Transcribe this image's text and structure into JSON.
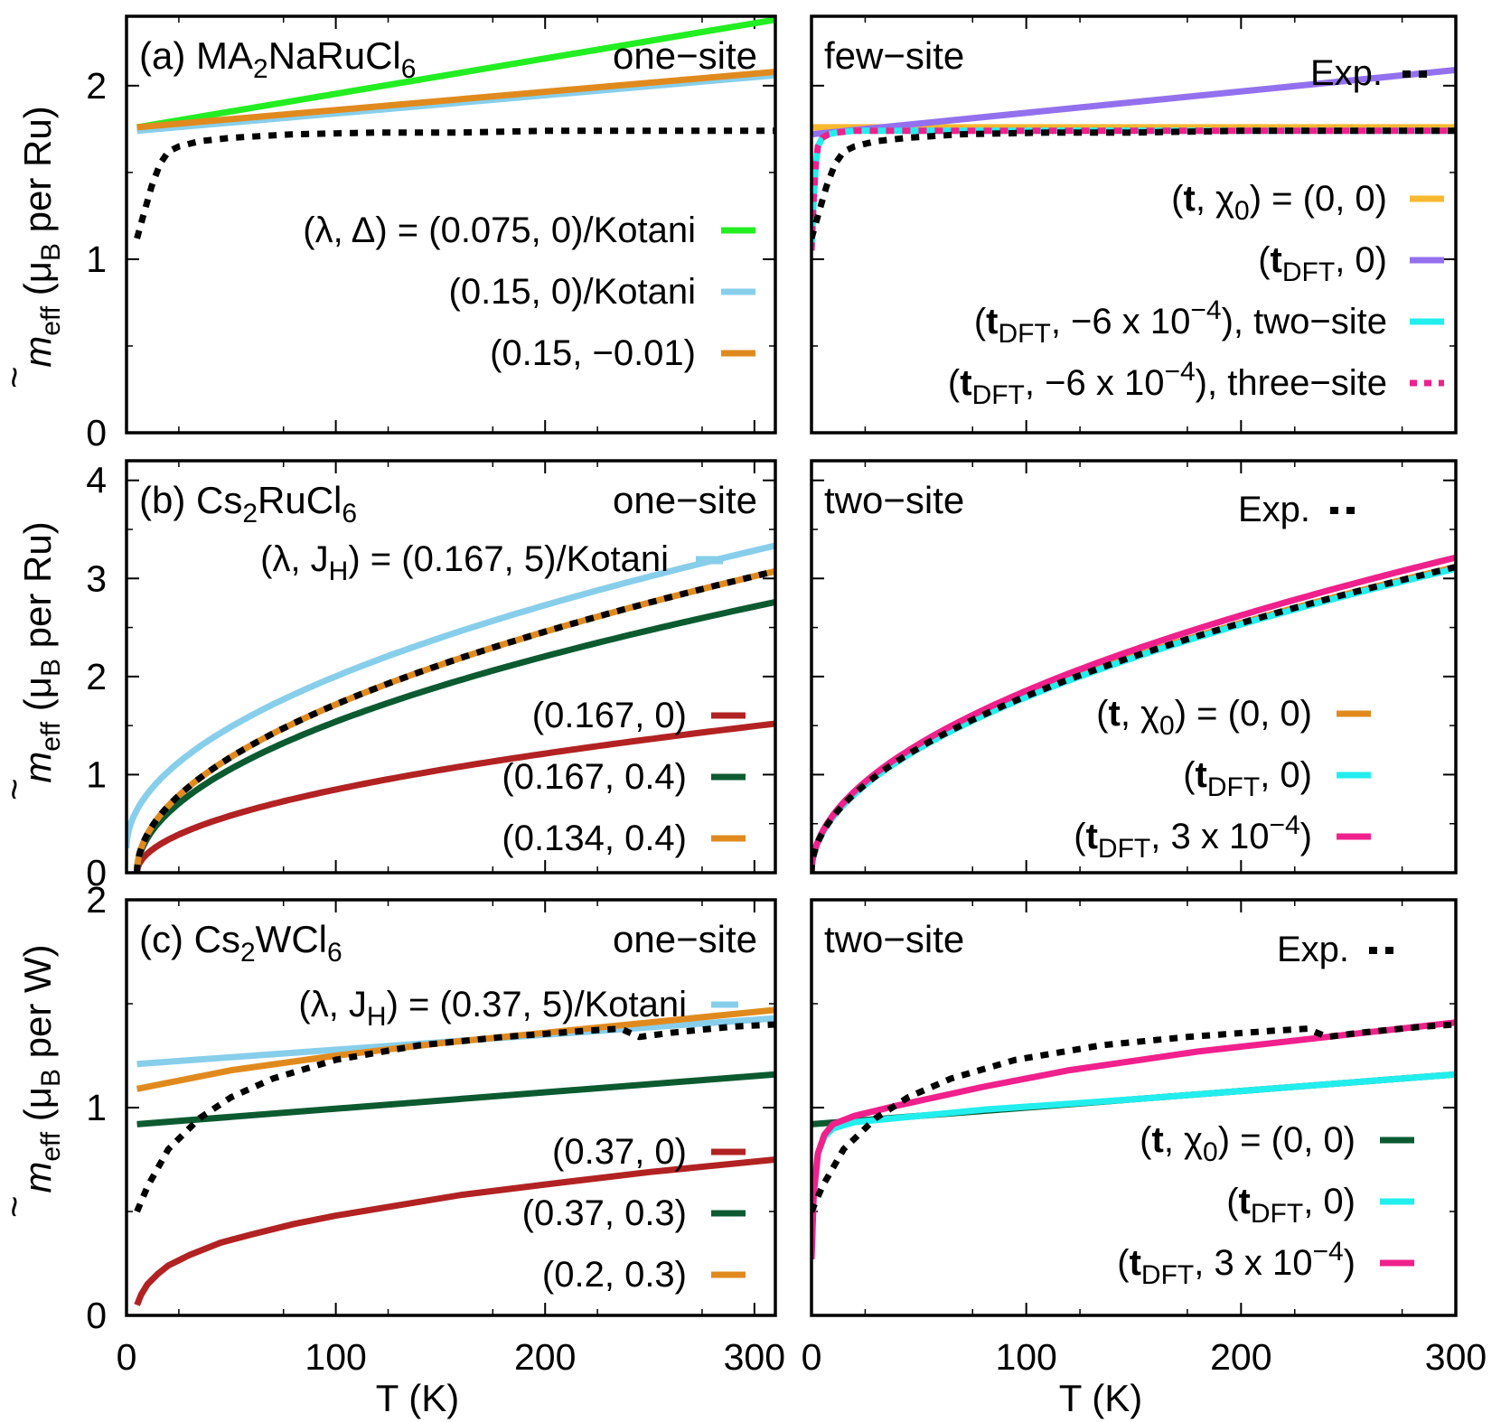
{
  "colors": {
    "exp": "#000000",
    "green": "#22ee22",
    "lightblue": "#87ceeb",
    "orange": "#e08a1e",
    "yellow": "#f8b830",
    "purple": "#9370ee",
    "cyan": "#22eeee",
    "magenta": "#f0208c",
    "darkred": "#b22222",
    "darkgreen": "#0b5a30"
  },
  "xlabel_left": "T (K)",
  "xlabel_right": "T (K)",
  "ylabels": {
    "a": {
      "main": "m",
      "sub1": "eff",
      "paren": " (μ",
      "sub2": "B",
      "rest": " per Ru)"
    },
    "b": {
      "main": "m",
      "sub1": "eff",
      "paren": " (μ",
      "sub2": "B",
      "rest": " per Ru)"
    },
    "c": {
      "main": "m",
      "sub1": "eff",
      "paren": " (μ",
      "sub2": "B",
      "rest": " per W)"
    }
  },
  "chart_data": [
    {
      "type": "line",
      "panel": "a-left",
      "title_parts": [
        "(a) MA",
        "2",
        "NaRuCl",
        "6"
      ],
      "corner_label": "one−site",
      "xlim": [
        0,
        310
      ],
      "ylim": [
        0,
        2.4
      ],
      "xticks": [
        "",
        "",
        "",
        ""
      ],
      "yticks": [
        "0",
        "1",
        "2"
      ],
      "series": [
        {
          "label": "(λ, Δ) = (0.075, 0)/Kotani",
          "color": "green",
          "style": "solid",
          "x": [
            5,
            310
          ],
          "y": [
            1.76,
            2.38
          ]
        },
        {
          "label": "(0.15, 0)/Kotani",
          "color": "lightblue",
          "style": "solid",
          "x": [
            5,
            310
          ],
          "y": [
            1.74,
            2.06
          ]
        },
        {
          "label": "(0.15, −0.01)",
          "color": "orange",
          "style": "solid",
          "x": [
            5,
            310
          ],
          "y": [
            1.76,
            2.08
          ]
        },
        {
          "label": "",
          "color": "exp",
          "style": "dotted",
          "x": [
            5,
            8,
            12,
            16,
            20,
            25,
            35,
            50,
            80,
            120,
            160,
            200,
            240,
            280,
            310
          ],
          "y": [
            1.12,
            1.25,
            1.42,
            1.55,
            1.62,
            1.65,
            1.68,
            1.7,
            1.72,
            1.73,
            1.73,
            1.74,
            1.74,
            1.74,
            1.74
          ]
        }
      ]
    },
    {
      "type": "line",
      "panel": "a-right",
      "title": "few−site",
      "exp_label": "Exp.",
      "xlim": [
        0,
        300
      ],
      "ylim": [
        0,
        2.4
      ],
      "series": [
        {
          "label": "(t, χ0) = (0, 0)",
          "legend_parts": [
            "(",
            "t",
            ", χ",
            "0",
            ") = (0, 0)"
          ],
          "color": "yellow",
          "style": "solid",
          "x": [
            0,
            300
          ],
          "y": [
            1.76,
            1.76
          ]
        },
        {
          "label": "(tDFT, 0)",
          "legend_parts": [
            "(",
            "t",
            "DFT",
            ", 0)"
          ],
          "color": "purple",
          "style": "solid",
          "x": [
            0,
            300
          ],
          "y": [
            1.72,
            2.09
          ]
        },
        {
          "label": "(tDFT, −6 x 10−4), two−site",
          "legend_parts": [
            "(",
            "t",
            "DFT",
            ", −6 x 10",
            "−4",
            "), two−site"
          ],
          "color": "cyan",
          "style": "solid",
          "x": [
            0,
            1,
            2,
            3,
            5,
            8,
            12,
            20,
            50,
            100,
            200,
            300
          ],
          "y": [
            1.05,
            1.35,
            1.55,
            1.65,
            1.7,
            1.72,
            1.73,
            1.74,
            1.74,
            1.74,
            1.74,
            1.74
          ]
        },
        {
          "label": "(tDFT, −6 x 10−4), three−site",
          "legend_parts": [
            "(",
            "t",
            "DFT",
            ", −6 x 10",
            "−4",
            "), three−site"
          ],
          "color": "magenta",
          "style": "dotted",
          "x": [
            0,
            1,
            2,
            3,
            5,
            8,
            12,
            20,
            50,
            100,
            200,
            300
          ],
          "y": [
            1.05,
            1.35,
            1.55,
            1.65,
            1.7,
            1.72,
            1.73,
            1.74,
            1.74,
            1.74,
            1.74,
            1.74
          ]
        },
        {
          "label": "Exp.",
          "color": "exp",
          "style": "dotted",
          "x": [
            0,
            3,
            7,
            11,
            15,
            20,
            30,
            45,
            70,
            110,
            150,
            200,
            250,
            300
          ],
          "y": [
            1.12,
            1.25,
            1.42,
            1.55,
            1.62,
            1.65,
            1.68,
            1.7,
            1.72,
            1.73,
            1.73,
            1.74,
            1.74,
            1.74
          ]
        }
      ]
    },
    {
      "type": "line",
      "panel": "b-left",
      "title_parts": [
        "(b) Cs",
        "2",
        "RuCl",
        "6"
      ],
      "corner_label": "one−site",
      "header_legend_parts": [
        "(λ, J",
        "H",
        ") = (0.167, 5)/Kotani"
      ],
      "xlim": [
        0,
        310
      ],
      "ylim": [
        0,
        4.2
      ],
      "xticks": [
        "",
        "",
        "",
        ""
      ],
      "yticks": [
        "0",
        "1",
        "2",
        "3",
        "4"
      ],
      "series": [
        {
          "label": "(λ, JH) = (0.167, 5)/Kotani",
          "color": "lightblue",
          "style": "solid",
          "xmin": 0,
          "y0": 0.25,
          "k": 0.1752,
          "p": 0.5
        },
        {
          "label": "(0.167, 0)",
          "color": "darkred",
          "style": "solid",
          "xmin": 5,
          "y0": 0.0,
          "k": 0.087,
          "p": 0.5
        },
        {
          "label": "(0.167, 0.4)",
          "color": "darkgreen",
          "style": "solid",
          "xmin": 5,
          "y0": 0.0,
          "k": 0.158,
          "p": 0.5
        },
        {
          "label": "(0.134, 0.4)",
          "color": "orange",
          "style": "solid",
          "xmin": 5,
          "y0": 0.0,
          "k": 0.176,
          "p": 0.5
        },
        {
          "label": "",
          "color": "exp",
          "style": "dotted",
          "xmin": 5,
          "y0": 0.0,
          "k": 0.176,
          "p": 0.5
        }
      ]
    },
    {
      "type": "line",
      "panel": "b-right",
      "title": "two−site",
      "exp_label": "Exp.",
      "xlim": [
        0,
        300
      ],
      "ylim": [
        0,
        4.2
      ],
      "series": [
        {
          "label": "(t, χ0) = (0, 0)",
          "legend_parts": [
            "(",
            "t",
            ", χ",
            "0",
            ") = (0, 0)"
          ],
          "color": "orange",
          "style": "solid",
          "xmin": 0,
          "y0": 0.0,
          "k": 0.18,
          "p": 0.5
        },
        {
          "label": "(tDFT, 0)",
          "legend_parts": [
            "(",
            "t",
            "DFT",
            ", 0)"
          ],
          "color": "cyan",
          "style": "solid",
          "xmin": 0,
          "y0": 0.0,
          "k": 0.179,
          "p": 0.5
        },
        {
          "label": "(tDFT, 3 x 10−4)",
          "legend_parts": [
            "(",
            "t",
            "DFT",
            ", 3 x 10",
            "−4",
            ")"
          ],
          "color": "magenta",
          "style": "solid",
          "xmin": 0,
          "y0": 0.0,
          "k": 0.1855,
          "p": 0.5
        },
        {
          "label": "Exp.",
          "color": "exp",
          "style": "dotted",
          "xmin": 0,
          "y0": 0.0,
          "k": 0.18,
          "p": 0.5
        }
      ]
    },
    {
      "type": "line",
      "panel": "c-left",
      "title_parts": [
        "(c) Cs",
        "2",
        "WCl",
        "6"
      ],
      "corner_label": "one−site",
      "xlim": [
        0,
        310
      ],
      "ylim": [
        0,
        2.0
      ],
      "xticks": [
        "0",
        "100",
        "200",
        "300"
      ],
      "yticks": [
        "0",
        "1",
        "2"
      ],
      "series": [
        {
          "label": "(λ, JH) = (0.37, 5)/Kotani",
          "color": "lightblue",
          "style": "solid",
          "x": [
            5,
            310
          ],
          "y": [
            1.21,
            1.43
          ]
        },
        {
          "label": "(0.37, 0)",
          "color": "darkred",
          "style": "solid",
          "x": [
            5,
            7,
            10,
            15,
            20,
            30,
            45,
            60,
            80,
            100,
            130,
            160,
            200,
            250,
            310
          ],
          "y": [
            0.05,
            0.1,
            0.15,
            0.2,
            0.24,
            0.29,
            0.35,
            0.39,
            0.44,
            0.48,
            0.53,
            0.58,
            0.63,
            0.69,
            0.75
          ]
        },
        {
          "label": "(0.37, 0.3)",
          "color": "darkgreen",
          "style": "solid",
          "x": [
            5,
            310
          ],
          "y": [
            0.92,
            1.16
          ]
        },
        {
          "label": "(0.2, 0.3)",
          "color": "orange",
          "style": "solid",
          "x": [
            5,
            50,
            100,
            150,
            200,
            250,
            310
          ],
          "y": [
            1.09,
            1.18,
            1.25,
            1.31,
            1.36,
            1.41,
            1.47
          ]
        },
        {
          "label": "",
          "color": "exp",
          "style": "dotted",
          "x": [
            5,
            10,
            20,
            35,
            50,
            70,
            100,
            140,
            180,
            220,
            236,
            245,
            260,
            290,
            310
          ],
          "y": [
            0.5,
            0.62,
            0.8,
            0.95,
            1.05,
            1.14,
            1.23,
            1.3,
            1.34,
            1.37,
            1.38,
            1.34,
            1.36,
            1.39,
            1.4
          ]
        }
      ]
    },
    {
      "type": "line",
      "panel": "c-right",
      "title": "two−site",
      "exp_label": "Exp.",
      "xlim": [
        0,
        300
      ],
      "ylim": [
        0,
        2.0
      ],
      "xticks": [
        "0",
        "100",
        "200",
        "300"
      ],
      "series": [
        {
          "label": "(t, χ0) = (0, 0)",
          "legend_parts": [
            "(",
            "t",
            ", χ",
            "0",
            ") = (0, 0)"
          ],
          "color": "darkgreen",
          "style": "solid",
          "x": [
            0,
            300
          ],
          "y": [
            0.92,
            1.16
          ]
        },
        {
          "label": "(tDFT, 0)",
          "legend_parts": [
            "(",
            "t",
            "DFT",
            ", 0)"
          ],
          "color": "cyan",
          "style": "solid",
          "x": [
            0,
            1,
            3,
            6,
            10,
            20,
            40,
            80,
            150,
            300
          ],
          "y": [
            0.3,
            0.6,
            0.78,
            0.86,
            0.9,
            0.93,
            0.95,
            0.99,
            1.04,
            1.16
          ]
        },
        {
          "label": "(tDFT, 3 x 10−4)",
          "legend_parts": [
            "(",
            "t",
            "DFT",
            ", 3 x 10",
            "−4",
            ")"
          ],
          "color": "magenta",
          "style": "solid",
          "x": [
            0,
            1,
            3,
            6,
            10,
            20,
            40,
            80,
            120,
            180,
            240,
            300
          ],
          "y": [
            0.27,
            0.58,
            0.78,
            0.87,
            0.92,
            0.96,
            1.01,
            1.1,
            1.18,
            1.27,
            1.34,
            1.41
          ]
        },
        {
          "label": "Exp.",
          "color": "exp",
          "style": "dotted",
          "x": [
            0,
            5,
            15,
            30,
            45,
            65,
            95,
            135,
            175,
            215,
            231,
            240,
            255,
            285,
            300
          ],
          "y": [
            0.5,
            0.62,
            0.8,
            0.95,
            1.05,
            1.14,
            1.23,
            1.3,
            1.34,
            1.37,
            1.38,
            1.34,
            1.36,
            1.39,
            1.4
          ]
        }
      ]
    }
  ]
}
